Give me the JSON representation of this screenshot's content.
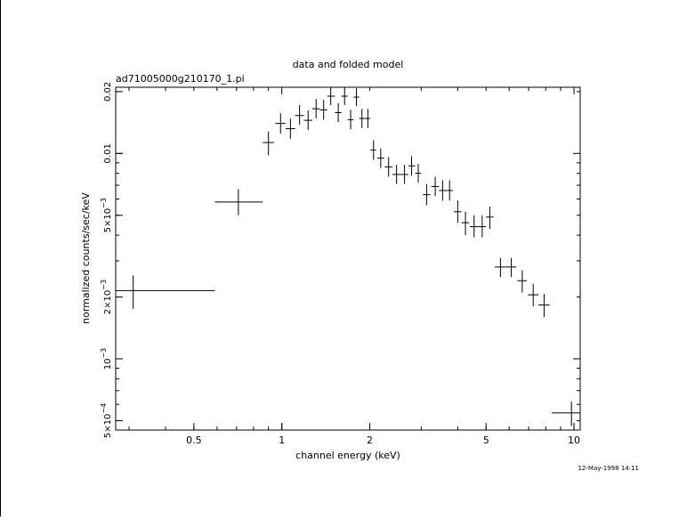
{
  "chart_data": {
    "type": "scatter",
    "title": "data and folded model",
    "subtitle": "ad71005000g210170_1.pi",
    "xlabel": "channel energy (keV)",
    "ylabel": "normalized counts/sec/keV",
    "x_scale": "log",
    "y_scale": "log",
    "xlim": [
      0.27,
      10.5
    ],
    "ylim": [
      0.00045,
      0.021
    ],
    "x_ticks": [
      {
        "value": 0.5,
        "label": "0.5"
      },
      {
        "value": 1,
        "label": "1"
      },
      {
        "value": 2,
        "label": "2"
      },
      {
        "value": 5,
        "label": "5"
      },
      {
        "value": 10,
        "label": "10"
      }
    ],
    "y_ticks": [
      {
        "value": 0.0005,
        "mantissa": "5×10",
        "exp": "−4"
      },
      {
        "value": 0.001,
        "mantissa": "10",
        "exp": "−3"
      },
      {
        "value": 0.002,
        "mantissa": "2×10",
        "exp": "−3"
      },
      {
        "value": 0.005,
        "mantissa": "5×10",
        "exp": "−3"
      },
      {
        "value": 0.01,
        "mantissa": "0.01",
        "exp": ""
      },
      {
        "value": 0.02,
        "mantissa": "0.02",
        "exp": ""
      }
    ],
    "grid": false,
    "series": [
      {
        "points": [
          {
            "x": 0.31,
            "x_lo": 0.27,
            "x_hi": 0.59,
            "y": 0.00215,
            "y_lo": 0.00175,
            "y_hi": 0.00255
          },
          {
            "x": 0.71,
            "x_lo": 0.59,
            "x_hi": 0.86,
            "y": 0.0058,
            "y_lo": 0.005,
            "y_hi": 0.0067
          },
          {
            "x": 0.9,
            "x_lo": 0.86,
            "x_hi": 0.94,
            "y": 0.0113,
            "y_lo": 0.0098,
            "y_hi": 0.0128
          },
          {
            "x": 0.99,
            "x_lo": 0.95,
            "x_hi": 1.03,
            "y": 0.014,
            "y_lo": 0.0125,
            "y_hi": 0.0157
          },
          {
            "x": 1.07,
            "x_lo": 1.03,
            "x_hi": 1.11,
            "y": 0.0132,
            "y_lo": 0.0118,
            "y_hi": 0.0148
          },
          {
            "x": 1.15,
            "x_lo": 1.11,
            "x_hi": 1.19,
            "y": 0.0153,
            "y_lo": 0.0138,
            "y_hi": 0.0172
          },
          {
            "x": 1.23,
            "x_lo": 1.19,
            "x_hi": 1.27,
            "y": 0.0145,
            "y_lo": 0.013,
            "y_hi": 0.0162
          },
          {
            "x": 1.31,
            "x_lo": 1.27,
            "x_hi": 1.35,
            "y": 0.0165,
            "y_lo": 0.0148,
            "y_hi": 0.0184
          },
          {
            "x": 1.39,
            "x_lo": 1.35,
            "x_hi": 1.43,
            "y": 0.0163,
            "y_lo": 0.0146,
            "y_hi": 0.0182
          },
          {
            "x": 1.47,
            "x_lo": 1.43,
            "x_hi": 1.52,
            "y": 0.019,
            "y_lo": 0.0172,
            "y_hi": 0.021
          },
          {
            "x": 1.56,
            "x_lo": 1.52,
            "x_hi": 1.6,
            "y": 0.0158,
            "y_lo": 0.0142,
            "y_hi": 0.0176
          },
          {
            "x": 1.64,
            "x_lo": 1.6,
            "x_hi": 1.68,
            "y": 0.019,
            "y_lo": 0.0172,
            "y_hi": 0.021
          },
          {
            "x": 1.72,
            "x_lo": 1.68,
            "x_hi": 1.76,
            "y": 0.0146,
            "y_lo": 0.0131,
            "y_hi": 0.0163
          },
          {
            "x": 1.8,
            "x_lo": 1.76,
            "x_hi": 1.84,
            "y": 0.0188,
            "y_lo": 0.017,
            "y_hi": 0.0208
          },
          {
            "x": 1.88,
            "x_lo": 1.84,
            "x_hi": 1.93,
            "y": 0.0148,
            "y_lo": 0.0133,
            "y_hi": 0.0165
          },
          {
            "x": 1.97,
            "x_lo": 1.93,
            "x_hi": 2.01,
            "y": 0.0148,
            "y_lo": 0.0133,
            "y_hi": 0.0165
          },
          {
            "x": 2.06,
            "x_lo": 2.01,
            "x_hi": 2.1,
            "y": 0.0104,
            "y_lo": 0.0093,
            "y_hi": 0.0116
          },
          {
            "x": 2.18,
            "x_lo": 2.12,
            "x_hi": 2.24,
            "y": 0.0095,
            "y_lo": 0.0085,
            "y_hi": 0.0106
          },
          {
            "x": 2.32,
            "x_lo": 2.25,
            "x_hi": 2.39,
            "y": 0.0086,
            "y_lo": 0.0077,
            "y_hi": 0.0096
          },
          {
            "x": 2.47,
            "x_lo": 2.39,
            "x_hi": 2.55,
            "y": 0.0079,
            "y_lo": 0.0071,
            "y_hi": 0.0088
          },
          {
            "x": 2.63,
            "x_lo": 2.55,
            "x_hi": 2.71,
            "y": 0.0079,
            "y_lo": 0.0071,
            "y_hi": 0.0088
          },
          {
            "x": 2.78,
            "x_lo": 2.71,
            "x_hi": 2.86,
            "y": 0.0087,
            "y_lo": 0.0078,
            "y_hi": 0.0097
          },
          {
            "x": 2.93,
            "x_lo": 2.86,
            "x_hi": 3.0,
            "y": 0.008,
            "y_lo": 0.0072,
            "y_hi": 0.0089
          },
          {
            "x": 3.13,
            "x_lo": 3.04,
            "x_hi": 3.22,
            "y": 0.0063,
            "y_lo": 0.0056,
            "y_hi": 0.0071
          },
          {
            "x": 3.35,
            "x_lo": 3.25,
            "x_hi": 3.45,
            "y": 0.0069,
            "y_lo": 0.0062,
            "y_hi": 0.0077
          },
          {
            "x": 3.55,
            "x_lo": 3.45,
            "x_hi": 3.65,
            "y": 0.0066,
            "y_lo": 0.0059,
            "y_hi": 0.0074
          },
          {
            "x": 3.75,
            "x_lo": 3.65,
            "x_hi": 3.85,
            "y": 0.0066,
            "y_lo": 0.0059,
            "y_hi": 0.0074
          },
          {
            "x": 4.0,
            "x_lo": 3.88,
            "x_hi": 4.12,
            "y": 0.0052,
            "y_lo": 0.0046,
            "y_hi": 0.0059
          },
          {
            "x": 4.25,
            "x_lo": 4.12,
            "x_hi": 4.38,
            "y": 0.0046,
            "y_lo": 0.004,
            "y_hi": 0.0052
          },
          {
            "x": 4.55,
            "x_lo": 4.4,
            "x_hi": 4.7,
            "y": 0.0044,
            "y_lo": 0.0039,
            "y_hi": 0.005
          },
          {
            "x": 4.85,
            "x_lo": 4.7,
            "x_hi": 5.0,
            "y": 0.0044,
            "y_lo": 0.0039,
            "y_hi": 0.005
          },
          {
            "x": 5.15,
            "x_lo": 5.0,
            "x_hi": 5.3,
            "y": 0.0049,
            "y_lo": 0.0043,
            "y_hi": 0.0055
          },
          {
            "x": 5.6,
            "x_lo": 5.35,
            "x_hi": 5.85,
            "y": 0.0028,
            "y_lo": 0.0025,
            "y_hi": 0.0031
          },
          {
            "x": 6.1,
            "x_lo": 5.85,
            "x_hi": 6.35,
            "y": 0.0028,
            "y_lo": 0.0025,
            "y_hi": 0.0031
          },
          {
            "x": 6.65,
            "x_lo": 6.4,
            "x_hi": 6.9,
            "y": 0.0024,
            "y_lo": 0.0021,
            "y_hi": 0.0027
          },
          {
            "x": 7.25,
            "x_lo": 6.95,
            "x_hi": 7.55,
            "y": 0.00205,
            "y_lo": 0.0018,
            "y_hi": 0.00232
          },
          {
            "x": 7.9,
            "x_lo": 7.55,
            "x_hi": 8.25,
            "y": 0.00183,
            "y_lo": 0.0016,
            "y_hi": 0.00207
          },
          {
            "x": 9.8,
            "x_lo": 8.4,
            "x_hi": 10.5,
            "y": 0.000545,
            "y_lo": 0.00047,
            "y_hi": 0.00062
          }
        ]
      }
    ]
  },
  "footer": {
    "timestamp": "12-May-1998 14:11"
  }
}
